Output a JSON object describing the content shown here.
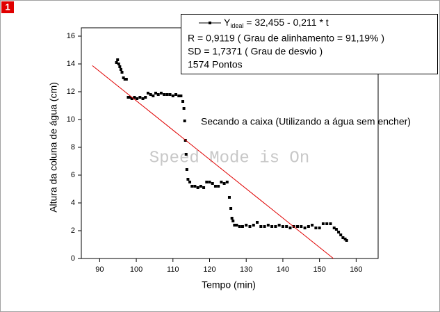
{
  "chart_data": {
    "type": "scatter",
    "badge": "1",
    "watermark": "Speed Mode is On",
    "xlabel": "Tempo (min)",
    "ylabel": "Altura da coluna de água (cm)",
    "xlim": [
      85,
      166
    ],
    "ylim": [
      0,
      16.6
    ],
    "xticks": [
      90,
      100,
      110,
      120,
      130,
      140,
      150,
      160
    ],
    "yticks": [
      0,
      2,
      4,
      6,
      8,
      10,
      12,
      14,
      16
    ],
    "annotations": [
      "R = 0,9119 ( Grau de alinhamento = 91,19% )",
      "SD = 1,7371 ( Grau de desvio )",
      "1574 Pontos",
      "Secando a caixa (Utilizando a água sem encher)"
    ],
    "series": [
      {
        "color": "#000000",
        "style": "markers",
        "x": [
          94.6,
          94.9,
          95.2,
          95.5,
          95.8,
          96.1,
          96.5,
          96.9,
          97.3,
          97.8,
          98.2,
          98.8,
          99.5,
          100.2,
          101,
          101.8,
          102.5,
          103.2,
          103.9,
          104.6,
          105.3,
          106,
          106.8,
          107.6,
          108.4,
          109.2,
          110,
          110.8,
          111.6,
          112.2,
          112.7,
          113,
          113.2,
          113.4,
          113.6,
          113.8,
          114.1,
          114.6,
          115.2,
          116,
          116.8,
          117.6,
          118.4,
          119.2,
          120,
          120.8,
          121.6,
          122.4,
          123.2,
          124,
          124.8,
          125.4,
          125.8,
          126.1,
          126.4,
          126.8,
          127.4,
          128.2,
          129,
          130,
          131,
          132,
          133,
          134,
          135,
          136,
          137,
          138,
          139,
          140,
          141,
          142,
          143,
          144,
          145,
          146,
          147,
          148,
          149,
          150,
          151,
          152,
          153,
          154,
          154.6,
          155.2,
          155.8,
          156.4,
          157,
          157.4
        ],
        "y": [
          14.1,
          14.3,
          14.0,
          13.8,
          13.6,
          13.4,
          13.0,
          12.9,
          12.9,
          11.6,
          11.6,
          11.5,
          11.6,
          11.5,
          11.6,
          11.5,
          11.6,
          11.9,
          11.8,
          11.7,
          11.9,
          11.8,
          11.9,
          11.8,
          11.8,
          11.8,
          11.7,
          11.8,
          11.7,
          11.7,
          11.3,
          10.8,
          9.9,
          8.5,
          7.5,
          6.4,
          5.7,
          5.5,
          5.2,
          5.2,
          5.1,
          5.2,
          5.1,
          5.5,
          5.5,
          5.4,
          5.2,
          5.2,
          5.5,
          5.4,
          5.5,
          4.4,
          3.6,
          2.9,
          2.7,
          2.4,
          2.4,
          2.3,
          2.3,
          2.4,
          2.3,
          2.4,
          2.6,
          2.3,
          2.3,
          2.4,
          2.3,
          2.3,
          2.4,
          2.3,
          2.3,
          2.2,
          2.3,
          2.3,
          2.3,
          2.2,
          2.3,
          2.4,
          2.2,
          2.2,
          2.5,
          2.5,
          2.5,
          2.2,
          2.1,
          1.9,
          1.7,
          1.5,
          1.4,
          1.3
        ]
      },
      {
        "name": "Y",
        "name_subscript": "ideal",
        "name_suffix": " = 32,455 - 0,211 * t",
        "color": "#e00000",
        "style": "line",
        "x": [
          88,
          153.8
        ],
        "y": [
          13.88,
          0
        ]
      }
    ]
  }
}
